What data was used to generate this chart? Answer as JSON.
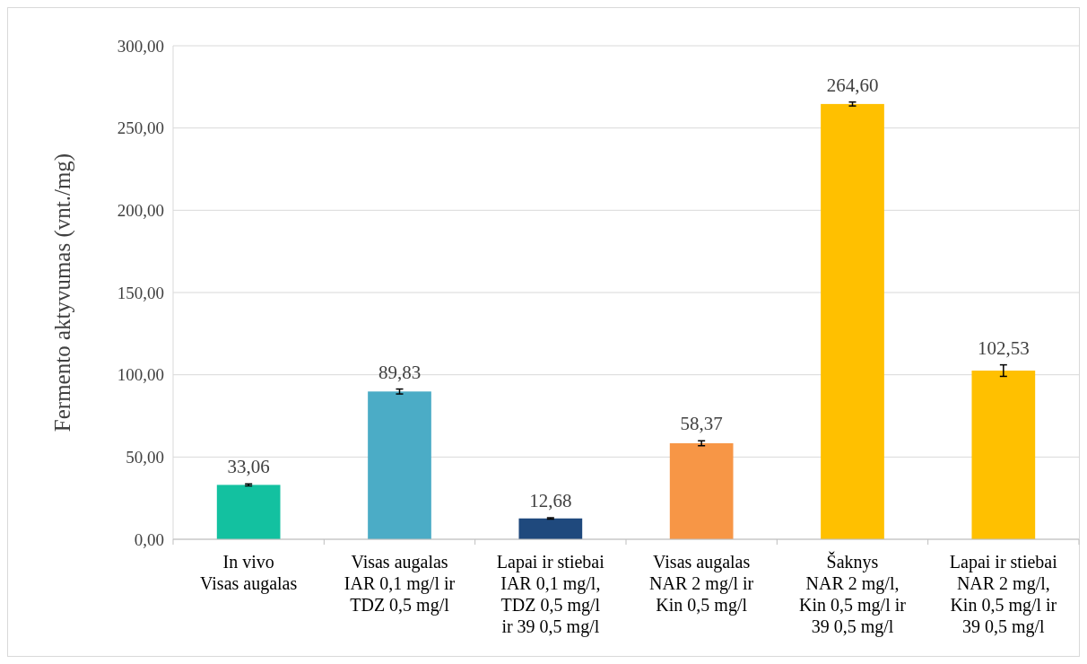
{
  "chart_data": {
    "type": "bar",
    "ylabel": "Fermento aktyvumas (vnt./mg)",
    "categories": [
      "In vivo\nVisas augalas",
      "Visas augalas\nIAR 0,1 mg/l ir\nTDZ 0,5 mg/l",
      "Lapai ir stiebai\nIAR 0,1 mg/l,\nTDZ 0,5 mg/l\nir 39 0,5 mg/l",
      "Visas augalas\nNAR 2 mg/l ir\nKin 0,5 mg/l",
      "Šaknys\nNAR 2 mg/l,\nKin 0,5 mg/l ir\n39 0,5 mg/l",
      "Lapai ir stiebai\nNAR 2 mg/l,\nKin 0,5 mg/l ir\n39 0,5 mg/l"
    ],
    "values": [
      33.06,
      89.83,
      12.68,
      58.37,
      264.6,
      102.53
    ],
    "colors": [
      "#13c1a0",
      "#4bacc6",
      "#1f497d",
      "#f79646",
      "#ffc000",
      "#ffc000"
    ],
    "errors": [
      0.6,
      1.5,
      0.4,
      1.5,
      1.2,
      3.5
    ],
    "value_labels": [
      "33,06",
      "89,83",
      "12,68",
      "58,37",
      "264,60",
      "102,53"
    ],
    "ylim": [
      0,
      300
    ],
    "yticks": [
      {
        "value": 0,
        "label": "0,00"
      },
      {
        "value": 50,
        "label": "50,00"
      },
      {
        "value": 100,
        "label": "100,00"
      },
      {
        "value": 150,
        "label": "150,00"
      },
      {
        "value": 200,
        "label": "200,00"
      },
      {
        "value": 250,
        "label": "250,00"
      },
      {
        "value": 300,
        "label": "300,00"
      }
    ],
    "grid": "y"
  }
}
